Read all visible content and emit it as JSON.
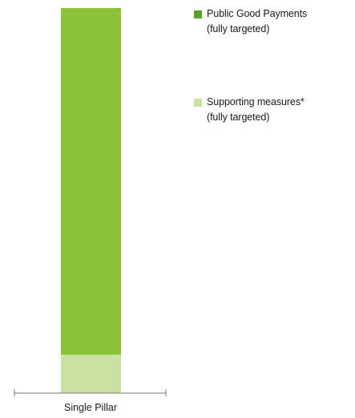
{
  "chart_data": {
    "type": "bar",
    "stacked": true,
    "categories": [
      "Single Pillar"
    ],
    "series": [
      {
        "name": "Supporting measures*",
        "name_line2": "(fully targeted)",
        "values": [
          10
        ],
        "color": "#c9e2a1"
      },
      {
        "name": "Public Good Payments",
        "name_line2": "(fully targeted)",
        "values": [
          90
        ],
        "color": "#8cc23a"
      }
    ],
    "ylim": [
      0,
      100
    ],
    "grid": false,
    "legend_position": "top-right",
    "legend_swatch_colors": [
      "#5aa02c",
      "#c9e2a1"
    ]
  }
}
